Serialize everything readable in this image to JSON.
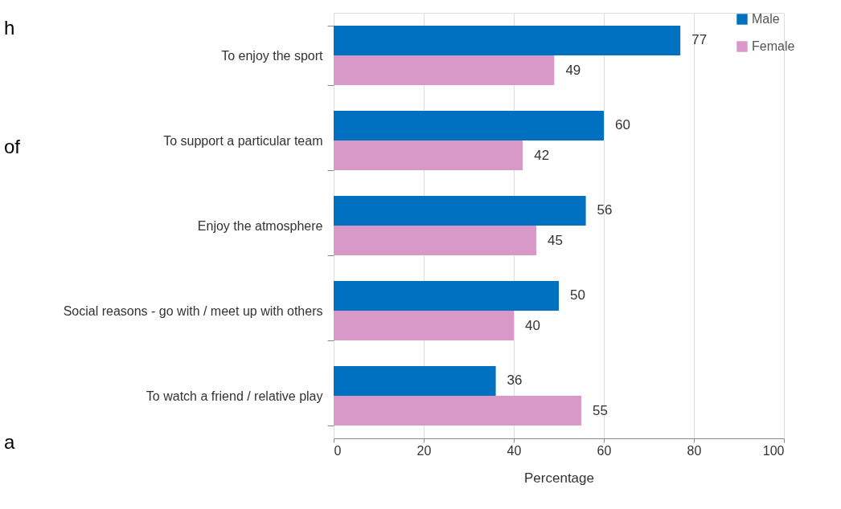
{
  "chart_data": {
    "type": "bar",
    "orientation": "horizontal",
    "xlabel": "Percentage",
    "categories": [
      "To enjoy the sport",
      "To support a particular team",
      "Enjoy the atmosphere",
      "Social reasons - go with / meet up with others",
      "To watch a friend / relative play"
    ],
    "series": [
      {
        "name": "Male",
        "color": "#0070c0",
        "values": [
          77,
          60,
          56,
          50,
          36
        ]
      },
      {
        "name": "Female",
        "color": "#d898c8",
        "values": [
          49,
          42,
          45,
          40,
          55
        ]
      }
    ],
    "xlim": [
      0,
      100
    ],
    "xticks": [
      0,
      20,
      40,
      60,
      80,
      100
    ],
    "grid": "x",
    "legend": "right",
    "data_labels": true,
    "annotations": [
      "h",
      "of",
      "a"
    ]
  }
}
